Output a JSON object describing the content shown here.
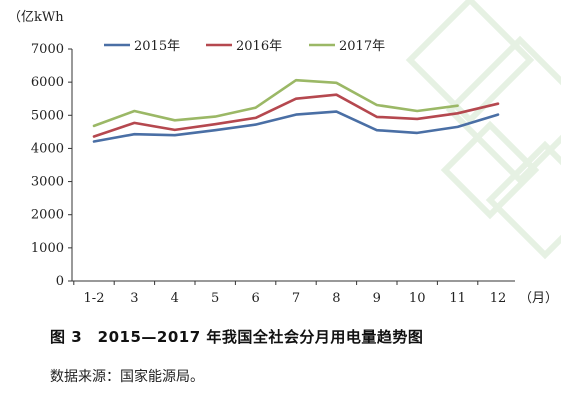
{
  "caption": "图 3　2015—2017 年我国全社会分月用电量趋势图",
  "source": "数据来源：国家能源局。",
  "chart_data": {
    "type": "line",
    "title": "",
    "ylabel": "（亿kWh",
    "xlabel": "（月）",
    "categories": [
      "1-2",
      "3",
      "4",
      "5",
      "6",
      "7",
      "8",
      "9",
      "10",
      "11",
      "12"
    ],
    "ylim": [
      0,
      7000
    ],
    "yticks": [
      "0",
      "1000",
      "2000",
      "3000",
      "4000",
      "5000",
      "6000",
      "7000"
    ],
    "grid": false,
    "legend_placement": "top",
    "series": [
      {
        "name": "2015年",
        "color": "#4a6fa5",
        "values": [
          4210,
          4430,
          4400,
          4550,
          4720,
          5020,
          5110,
          4550,
          4470,
          4650,
          5020
        ]
      },
      {
        "name": "2016年",
        "color": "#b5484f",
        "values": [
          4360,
          4770,
          4560,
          4730,
          4920,
          5500,
          5620,
          4950,
          4890,
          5060,
          5350
        ]
      },
      {
        "name": "2017年",
        "color": "#9bb866",
        "values": [
          4680,
          5130,
          4850,
          4960,
          5230,
          6060,
          5980,
          5310,
          5130,
          5290,
          null
        ]
      }
    ]
  }
}
